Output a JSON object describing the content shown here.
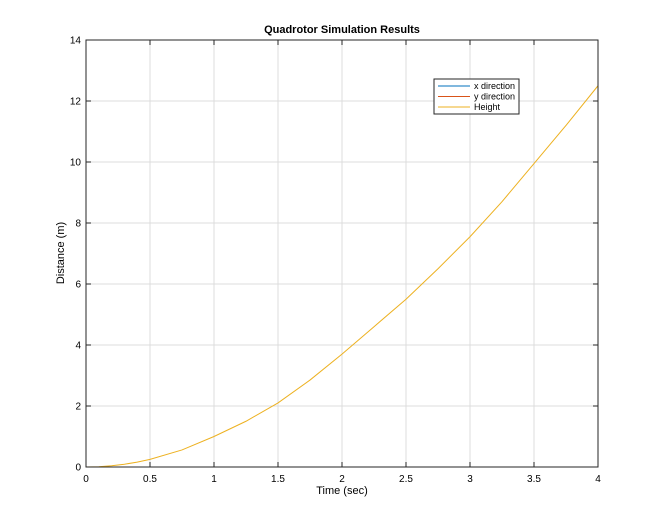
{
  "chart_data": {
    "type": "line",
    "title": "Quadrotor Simulation Results",
    "xlabel": "Time (sec)",
    "ylabel": "Distance (m)",
    "xlim": [
      0,
      4
    ],
    "ylim": [
      0,
      14
    ],
    "xticks": [
      0,
      0.5,
      1,
      1.5,
      2,
      2.5,
      3,
      3.5,
      4
    ],
    "xtick_labels": [
      "0",
      "0.5",
      "1",
      "1.5",
      "2",
      "2.5",
      "3",
      "3.5",
      "4"
    ],
    "yticks": [
      0,
      2,
      4,
      6,
      8,
      10,
      12,
      14
    ],
    "ytick_labels": [
      "0",
      "2",
      "4",
      "6",
      "8",
      "10",
      "12",
      "14"
    ],
    "grid": true,
    "legend_position": "top-right",
    "series": [
      {
        "name": "x direction",
        "color": "#0072bd",
        "x": [
          0,
          0.5,
          1,
          1.5,
          2,
          2.5,
          3,
          3.5,
          4
        ],
        "y": [
          0,
          0,
          0,
          0,
          0,
          0,
          0,
          0,
          0
        ]
      },
      {
        "name": "y direction",
        "color": "#d95319",
        "x": [
          0,
          0.5,
          1,
          1.5,
          2,
          2.5,
          3,
          3.5,
          4
        ],
        "y": [
          0,
          0,
          0,
          0,
          0,
          0,
          0,
          0,
          0
        ]
      },
      {
        "name": "Height",
        "color": "#edb120",
        "x": [
          0,
          0.1,
          0.2,
          0.3,
          0.4,
          0.5,
          0.75,
          1,
          1.25,
          1.5,
          1.75,
          2,
          2.25,
          2.5,
          2.75,
          3,
          3.25,
          3.5,
          3.75,
          4
        ],
        "y": [
          0,
          0.01,
          0.04,
          0.09,
          0.16,
          0.25,
          0.56,
          1.0,
          1.5,
          2.1,
          2.85,
          3.7,
          4.6,
          5.5,
          6.5,
          7.55,
          8.7,
          9.95,
          11.2,
          12.5
        ]
      }
    ]
  }
}
